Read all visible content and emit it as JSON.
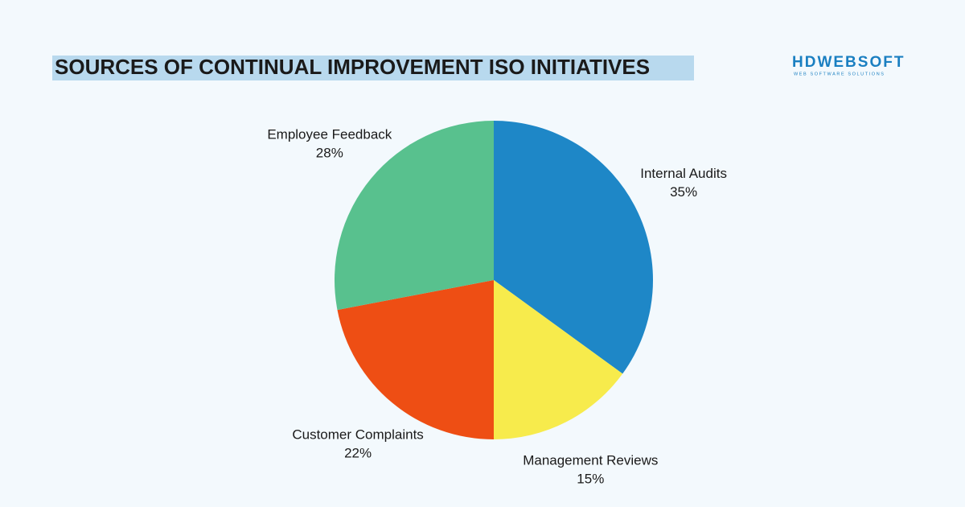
{
  "chart_data": {
    "type": "pie",
    "title": "SOURCES OF CONTINUAL IMPROVEMENT ISO INITIATIVES",
    "categories": [
      "Internal Audits",
      "Management Reviews",
      "Customer Complaints",
      "Employee Feedback"
    ],
    "values": [
      35,
      15,
      22,
      28
    ],
    "value_labels": [
      "35%",
      "15%",
      "22%",
      "28%"
    ],
    "colors": [
      "#1e87c7",
      "#f7eb4c",
      "#ee4e14",
      "#58c18e"
    ]
  },
  "brand": {
    "name": "HDWEBSOFT",
    "tagline": "WEB SOFTWARE SOLUTIONS"
  }
}
